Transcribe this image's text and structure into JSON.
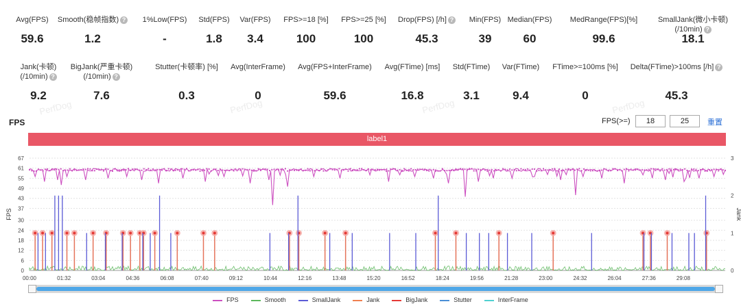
{
  "stats_row1": [
    {
      "label": "Avg(FPS)",
      "value": "59.6",
      "help": false
    },
    {
      "label": "Smooth(稳帧指数)",
      "value": "1.2",
      "help": true
    },
    {
      "label": "1%Low(FPS)",
      "value": "-",
      "help": false
    },
    {
      "label": "Std(FPS)",
      "value": "1.8",
      "help": false
    },
    {
      "label": "Var(FPS)",
      "value": "3.4",
      "help": false
    },
    {
      "label": "FPS>=18 [%]",
      "value": "100",
      "help": false
    },
    {
      "label": "FPS>=25 [%]",
      "value": "100",
      "help": false
    },
    {
      "label": "Drop(FPS) [/h]",
      "value": "45.3",
      "help": true
    },
    {
      "label": "Min(FPS)",
      "value": "39",
      "help": false
    },
    {
      "label": "Median(FPS)",
      "value": "60",
      "help": false
    },
    {
      "label": "MedRange(FPS)[%]",
      "value": "99.6",
      "help": false
    },
    {
      "label": "SmallJank(微小卡顿)",
      "label2": "(/10min)",
      "value": "18.1",
      "help": true
    }
  ],
  "stats_row2": [
    {
      "label": "Jank(卡顿)",
      "label2": "(/10min)",
      "value": "9.2",
      "help": true
    },
    {
      "label": "BigJank(严重卡顿)",
      "label2": "(/10min)",
      "value": "7.6",
      "help": true
    },
    {
      "label": "Stutter(卡顿率) [%]",
      "value": "0.3",
      "help": false
    },
    {
      "label": "Avg(InterFrame)",
      "value": "0",
      "help": false
    },
    {
      "label": "Avg(FPS+InterFrame)",
      "value": "59.6",
      "help": false
    },
    {
      "label": "Avg(FTime) [ms]",
      "value": "16.8",
      "help": false
    },
    {
      "label": "Std(FTime)",
      "value": "3.1",
      "help": false
    },
    {
      "label": "Var(FTime)",
      "value": "9.4",
      "help": false
    },
    {
      "label": "FTime>=100ms [%]",
      "value": "0",
      "help": false
    },
    {
      "label": "Delta(FTime)>100ms [/h]",
      "value": "45.3",
      "help": true
    }
  ],
  "help_glyph": "?",
  "watermark": "PerfDog",
  "chart_section": {
    "title": "FPS",
    "threshold_label": "FPS(>=)",
    "threshold_low": "18",
    "threshold_high": "25",
    "reset_label": "重置",
    "label_bar": "label1"
  },
  "legend": [
    {
      "name": "FPS",
      "color": "#cc4fc0"
    },
    {
      "name": "Smooth",
      "color": "#5cb85c"
    },
    {
      "name": "SmallJank",
      "color": "#5a5ad6"
    },
    {
      "name": "Jank",
      "color": "#f08050"
    },
    {
      "name": "BigJank",
      "color": "#e53935"
    },
    {
      "name": "Stutter",
      "color": "#4a8fd6"
    },
    {
      "name": "InterFrame",
      "color": "#4fd0d0"
    }
  ],
  "chart_data": {
    "type": "line",
    "ylabel": "FPS",
    "y2label": "Jank",
    "y_ticks": [
      0,
      6,
      12,
      18,
      24,
      30,
      37,
      43,
      49,
      55,
      61,
      67
    ],
    "y2_ticks": [
      0,
      1,
      2,
      3
    ],
    "ylim": [
      0,
      67
    ],
    "y2lim": [
      0,
      3
    ],
    "x_ticks": [
      "00:00",
      "01:32",
      "03:04",
      "04:36",
      "06:08",
      "07:40",
      "09:12",
      "10:44",
      "12:16",
      "13:48",
      "15:20",
      "16:52",
      "18:24",
      "19:56",
      "21:28",
      "23:00",
      "24:32",
      "26:04",
      "27:36",
      "29:08"
    ],
    "x_range_seconds": [
      0,
      1860
    ],
    "fps_baseline": 60,
    "fps_dips": [
      {
        "t": 15,
        "v": 56
      },
      {
        "t": 40,
        "v": 53
      },
      {
        "t": 75,
        "v": 54
      },
      {
        "t": 85,
        "v": 51
      },
      {
        "t": 100,
        "v": 56
      },
      {
        "t": 150,
        "v": 54
      },
      {
        "t": 210,
        "v": 55
      },
      {
        "t": 260,
        "v": 56
      },
      {
        "t": 300,
        "v": 54
      },
      {
        "t": 345,
        "v": 52
      },
      {
        "t": 410,
        "v": 55
      },
      {
        "t": 470,
        "v": 53
      },
      {
        "t": 520,
        "v": 56
      },
      {
        "t": 590,
        "v": 52
      },
      {
        "t": 640,
        "v": 54
      },
      {
        "t": 650,
        "v": 39
      },
      {
        "t": 690,
        "v": 50
      },
      {
        "t": 760,
        "v": 56
      },
      {
        "t": 830,
        "v": 55
      },
      {
        "t": 910,
        "v": 57
      },
      {
        "t": 960,
        "v": 53
      },
      {
        "t": 1030,
        "v": 56
      },
      {
        "t": 1080,
        "v": 55
      },
      {
        "t": 1120,
        "v": 52
      },
      {
        "t": 1165,
        "v": 44
      },
      {
        "t": 1200,
        "v": 53
      },
      {
        "t": 1240,
        "v": 55
      },
      {
        "t": 1290,
        "v": 55
      },
      {
        "t": 1350,
        "v": 56
      },
      {
        "t": 1420,
        "v": 54
      },
      {
        "t": 1460,
        "v": 45
      },
      {
        "t": 1480,
        "v": 56
      },
      {
        "t": 1530,
        "v": 55
      },
      {
        "t": 1590,
        "v": 52
      },
      {
        "t": 1640,
        "v": 57
      },
      {
        "t": 1700,
        "v": 54
      },
      {
        "t": 1750,
        "v": 53
      },
      {
        "t": 1790,
        "v": 55
      },
      {
        "t": 1830,
        "v": 56
      }
    ],
    "small_jank": [
      {
        "t": 20,
        "v": 1
      },
      {
        "t": 40,
        "v": 1
      },
      {
        "t": 65,
        "v": 2
      },
      {
        "t": 75,
        "v": 2
      },
      {
        "t": 85,
        "v": 2
      },
      {
        "t": 150,
        "v": 1
      },
      {
        "t": 200,
        "v": 1
      },
      {
        "t": 245,
        "v": 1
      },
      {
        "t": 300,
        "v": 1
      },
      {
        "t": 320,
        "v": 1
      },
      {
        "t": 345,
        "v": 2
      },
      {
        "t": 375,
        "v": 1
      },
      {
        "t": 640,
        "v": 1
      },
      {
        "t": 690,
        "v": 1
      },
      {
        "t": 715,
        "v": 2
      },
      {
        "t": 800,
        "v": 1
      },
      {
        "t": 860,
        "v": 1
      },
      {
        "t": 960,
        "v": 1
      },
      {
        "t": 1030,
        "v": 1
      },
      {
        "t": 1090,
        "v": 2
      },
      {
        "t": 1165,
        "v": 1
      },
      {
        "t": 1200,
        "v": 1
      },
      {
        "t": 1225,
        "v": 1
      },
      {
        "t": 1275,
        "v": 1
      },
      {
        "t": 1340,
        "v": 1
      },
      {
        "t": 1500,
        "v": 1
      },
      {
        "t": 1640,
        "v": 1
      },
      {
        "t": 1660,
        "v": 1
      },
      {
        "t": 1715,
        "v": 1
      },
      {
        "t": 1760,
        "v": 1
      },
      {
        "t": 1775,
        "v": 1
      },
      {
        "t": 1805,
        "v": 2
      }
    ],
    "big_jank_times": [
      15,
      35,
      60,
      100,
      120,
      170,
      205,
      250,
      270,
      295,
      305,
      335,
      395,
      465,
      495,
      695,
      720,
      790,
      845,
      1085,
      1140,
      1255,
      1400,
      1640,
      1660,
      1705,
      1810
    ]
  }
}
